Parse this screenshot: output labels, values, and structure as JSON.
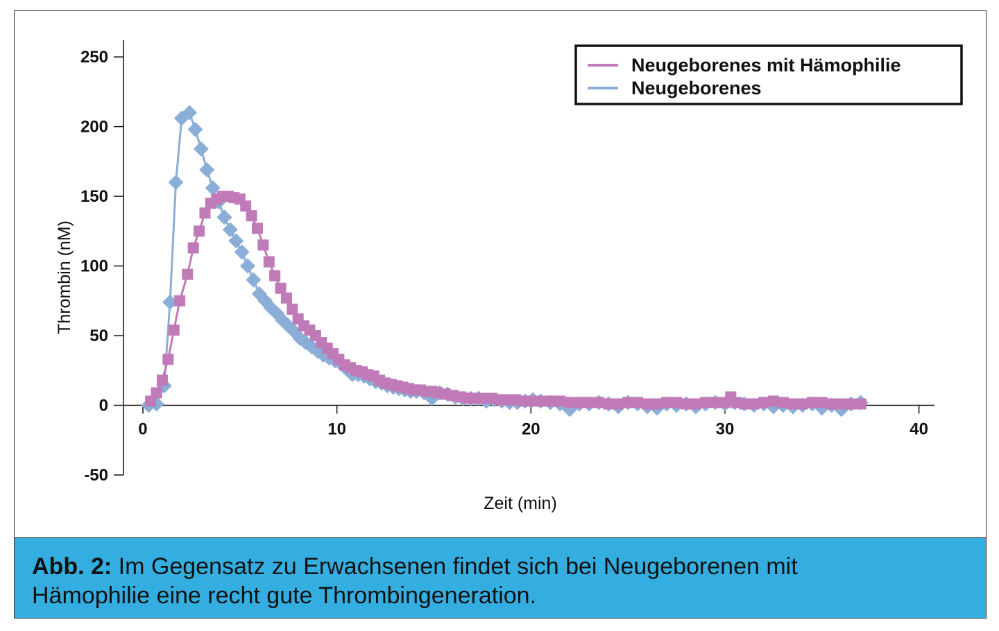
{
  "chart_data": {
    "type": "line",
    "xlabel": "Zeit (min)",
    "ylabel": "Thrombin (nM)",
    "xlim": [
      -1,
      40.8
    ],
    "ylim": [
      -50,
      262
    ],
    "xticks": [
      0,
      10,
      20,
      30,
      40
    ],
    "yticks": [
      -50,
      0,
      50,
      100,
      150,
      200,
      250
    ],
    "legend_position": "top-right",
    "series": [
      {
        "name": "Neugeborenes mit Hämophilie",
        "color": "#c07ab8",
        "marker": "square",
        "x": [
          0.4,
          0.7,
          1.0,
          1.3,
          1.6,
          1.9,
          2.3,
          2.6,
          2.9,
          3.2,
          3.5,
          3.8,
          4.1,
          4.4,
          4.7,
          5.0,
          5.3,
          5.6,
          5.9,
          6.2,
          6.5,
          6.8,
          7.1,
          7.4,
          7.7,
          8.0,
          8.3,
          8.6,
          8.9,
          9.2,
          9.5,
          9.8,
          10.1,
          10.4,
          10.7,
          11.0,
          11.3,
          11.6,
          11.9,
          12.2,
          12.5,
          12.8,
          13.1,
          13.4,
          13.7,
          14.0,
          14.3,
          14.6,
          14.9,
          15.2,
          15.6,
          16.0,
          16.4,
          16.8,
          17.2,
          17.6,
          18.0,
          18.4,
          18.8,
          19.2,
          19.6,
          20.0,
          20.5,
          21.0,
          21.5,
          22.0,
          22.5,
          23.0,
          23.5,
          24.0,
          24.5,
          25.0,
          25.5,
          26.0,
          26.5,
          27.0,
          27.5,
          28.0,
          28.5,
          29.0,
          29.5,
          30.0,
          30.3,
          30.6,
          31.0,
          31.5,
          32.0,
          32.5,
          33.0,
          33.5,
          34.0,
          34.5,
          35.0,
          35.5,
          36.0,
          36.5,
          37.0
        ],
        "y": [
          3,
          9,
          18,
          33,
          54,
          75,
          94,
          113,
          125,
          138,
          145,
          148,
          150,
          150,
          149,
          148,
          143,
          136,
          127,
          115,
          103,
          93,
          84,
          77,
          69,
          62,
          57,
          54,
          50,
          45,
          41,
          37,
          33,
          29,
          27,
          25,
          24,
          22,
          21,
          18,
          16,
          15,
          14,
          13,
          12,
          11,
          11,
          10,
          10,
          9,
          8,
          7,
          6,
          5,
          5,
          5,
          5,
          4,
          4,
          4,
          3,
          3,
          3,
          3,
          3,
          2,
          2,
          2,
          2,
          1,
          1,
          2,
          2,
          1,
          1,
          2,
          2,
          1,
          1,
          2,
          2,
          2,
          6,
          2,
          1,
          1,
          2,
          3,
          2,
          1,
          1,
          2,
          2,
          1,
          1,
          1,
          1
        ]
      },
      {
        "name": "Neugeborenes",
        "color": "#8aaed8",
        "marker": "diamond",
        "x": [
          0.3,
          0.7,
          1.1,
          1.4,
          1.7,
          2.0,
          2.4,
          2.7,
          3.0,
          3.3,
          3.6,
          3.9,
          4.2,
          4.5,
          4.8,
          5.1,
          5.4,
          5.7,
          6.0,
          6.3,
          6.6,
          6.9,
          7.2,
          7.5,
          7.8,
          8.1,
          8.4,
          8.7,
          9.0,
          9.3,
          9.6,
          9.9,
          10.2,
          10.5,
          10.8,
          11.1,
          11.4,
          11.7,
          12.0,
          12.3,
          12.6,
          12.9,
          13.2,
          13.5,
          13.8,
          14.1,
          14.5,
          14.9,
          15.3,
          15.7,
          16.1,
          16.5,
          16.9,
          17.3,
          17.7,
          18.1,
          18.5,
          18.9,
          19.3,
          19.7,
          20.1,
          20.5,
          21.0,
          21.5,
          22.0,
          22.5,
          23.0,
          23.5,
          24.0,
          24.5,
          25.0,
          25.5,
          26.0,
          26.5,
          27.0,
          27.5,
          28.0,
          28.5,
          29.0,
          29.5,
          30.0,
          30.5,
          31.0,
          31.5,
          32.0,
          32.5,
          33.0,
          33.5,
          34.0,
          34.5,
          35.0,
          35.5,
          36.0,
          36.5,
          37.0
        ],
        "y": [
          0,
          1,
          14,
          74,
          160,
          206,
          210,
          198,
          184,
          169,
          156,
          146,
          135,
          126,
          118,
          110,
          100,
          90,
          80,
          75,
          70,
          66,
          61,
          57,
          53,
          48,
          45,
          42,
          39,
          36,
          34,
          32,
          30,
          26,
          22,
          22,
          21,
          19,
          17,
          16,
          14,
          13,
          12,
          11,
          10,
          10,
          9,
          5,
          9,
          8,
          6,
          5,
          5,
          5,
          3,
          4,
          3,
          2,
          2,
          3,
          4,
          3,
          2,
          1,
          -3,
          1,
          1,
          2,
          1,
          -1,
          2,
          1,
          -1,
          -2,
          1,
          0,
          1,
          -1,
          1,
          2,
          1,
          2,
          1,
          0,
          1,
          -1,
          0,
          -1,
          0,
          1,
          -2,
          0,
          -3,
          1,
          2
        ]
      }
    ]
  },
  "caption": {
    "lead": "Abb. 2:",
    "line1": " Im Gegensatz zu Erwachsenen findet sich bei Neugeborenen mit",
    "line2": "Hämophilie eine recht gute Thrombingeneration."
  }
}
